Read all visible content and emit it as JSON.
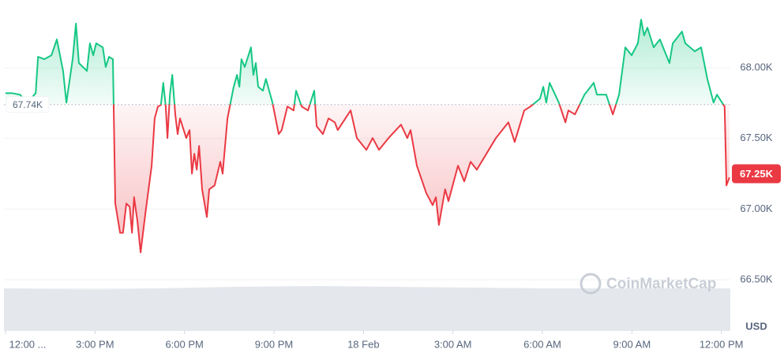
{
  "chart_data": {
    "type": "line",
    "watermark": "CoinMarketCap",
    "y_unit": "USD",
    "up_color": "#16c784",
    "down_color": "#ea3943",
    "baseline": {
      "value": 67740,
      "label": "67.74K"
    },
    "last_price": {
      "value": 67250,
      "label": "67.25K"
    },
    "xlim": [
      0,
      24.3
    ],
    "ylim": [
      66450,
      68480
    ],
    "xticks": [
      {
        "value": 0,
        "label": "12:00 ..."
      },
      {
        "value": 3,
        "label": "3:00 PM"
      },
      {
        "value": 6,
        "label": "6:00 PM"
      },
      {
        "value": 9,
        "label": "9:00 PM"
      },
      {
        "value": 12,
        "label": "18 Feb"
      },
      {
        "value": 15,
        "label": "3:00 AM"
      },
      {
        "value": 18,
        "label": "6:00 AM"
      },
      {
        "value": 21,
        "label": "9:00 AM"
      },
      {
        "value": 24,
        "label": "12:00 PM"
      }
    ],
    "yticks": [
      {
        "value": 66500,
        "label": "66.50K"
      },
      {
        "value": 67000,
        "label": "67.00K"
      },
      {
        "value": 67500,
        "label": "67.50K"
      },
      {
        "value": 68000,
        "label": "68.00K"
      }
    ],
    "grid": true,
    "x": [
      0,
      0.21,
      0.48,
      0.74,
      1.01,
      1.09,
      1.3,
      1.54,
      1.72,
      1.93,
      2.04,
      2.25,
      2.36,
      2.46,
      2.73,
      2.83,
      2.94,
      3.04,
      3.26,
      3.36,
      3.47,
      3.6,
      3.68,
      3.84,
      3.94,
      4.05,
      4.16,
      4.24,
      4.31,
      4.42,
      4.53,
      4.69,
      4.9,
      5.0,
      5.11,
      5.21,
      5.29,
      5.37,
      5.43,
      5.51,
      5.59,
      5.69,
      5.77,
      5.85,
      6.06,
      6.17,
      6.25,
      6.33,
      6.41,
      6.49,
      6.59,
      6.75,
      6.83,
      7.01,
      7.2,
      7.28,
      7.44,
      7.65,
      7.76,
      7.84,
      7.91,
      8.02,
      8.23,
      8.31,
      8.39,
      8.47,
      8.63,
      8.73,
      8.95,
      9.16,
      9.26,
      9.45,
      9.66,
      9.74,
      9.93,
      10.14,
      10.35,
      10.43,
      10.64,
      10.83,
      11.04,
      11.14,
      11.57,
      11.78,
      12.1,
      12.31,
      12.52,
      12.84,
      13.26,
      13.47,
      13.58,
      13.79,
      14.11,
      14.32,
      14.43,
      14.53,
      14.74,
      14.85,
      15.17,
      15.38,
      15.59,
      15.8,
      16.12,
      16.44,
      16.86,
      17.07,
      17.39,
      17.6,
      17.92,
      18.03,
      18.13,
      18.24,
      18.55,
      18.77,
      18.87,
      19.09,
      19.41,
      19.72,
      19.83,
      20.14,
      20.36,
      20.57,
      20.78,
      20.99,
      21.2,
      21.31,
      21.41,
      21.52,
      21.73,
      21.94,
      22.26,
      22.37,
      22.68,
      22.79,
      23.11,
      23.32,
      23.53,
      23.74,
      23.85,
      24.11,
      24.17,
      24.27
    ],
    "values": [
      67821,
      67821,
      67810,
      67754,
      67821,
      68078,
      68061,
      68089,
      68201,
      67978,
      67754,
      68061,
      68313,
      68034,
      67978,
      68173,
      68089,
      68173,
      68145,
      68006,
      68078,
      68061,
      67039,
      66832,
      66832,
      67039,
      67017,
      66832,
      67084,
      66916,
      66693,
      66972,
      67307,
      67642,
      67726,
      67737,
      67894,
      67726,
      67503,
      67810,
      67950,
      67670,
      67531,
      67642,
      67503,
      67559,
      67251,
      67391,
      67279,
      67447,
      67140,
      66944,
      67140,
      67168,
      67335,
      67251,
      67642,
      67866,
      67950,
      67866,
      68061,
      68006,
      68145,
      67950,
      68034,
      67866,
      67838,
      67922,
      67754,
      67531,
      67559,
      67726,
      67698,
      67838,
      67726,
      67698,
      67838,
      67587,
      67531,
      67642,
      67614,
      67559,
      67698,
      67503,
      67419,
      67503,
      67419,
      67503,
      67598,
      67503,
      67559,
      67307,
      67112,
      67028,
      67084,
      66888,
      67140,
      67056,
      67307,
      67196,
      67335,
      67279,
      67391,
      67503,
      67614,
      67475,
      67698,
      67726,
      67782,
      67866,
      67754,
      67894,
      67754,
      67614,
      67698,
      67670,
      67810,
      67894,
      67810,
      67810,
      67670,
      67810,
      68145,
      68089,
      68173,
      68341,
      68229,
      68285,
      68145,
      68201,
      68034,
      68173,
      68257,
      68173,
      68117,
      68145,
      67922,
      67754,
      67810,
      67726,
      67168,
      67224
    ]
  }
}
